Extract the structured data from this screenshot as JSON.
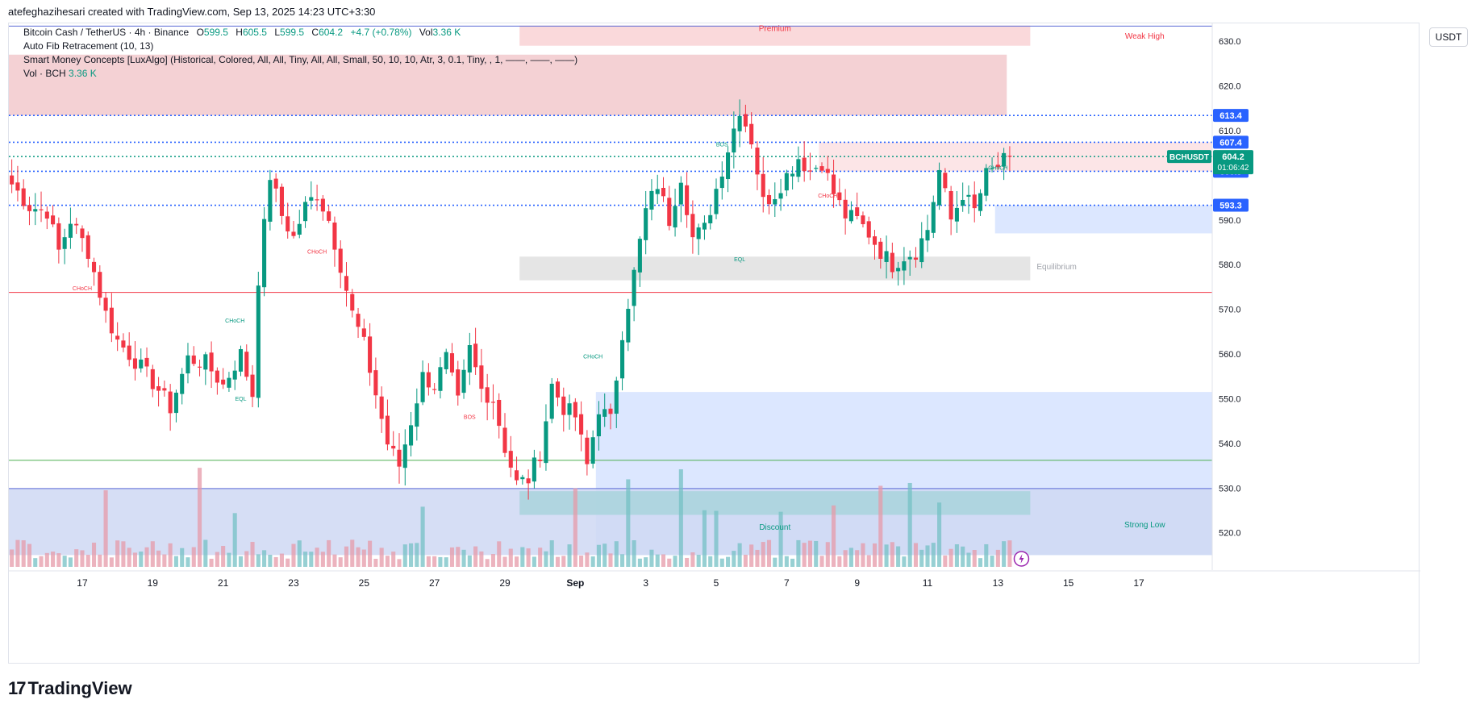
{
  "header": {
    "author_line": "atefeghazihesari created with TradingView.com, Sep 13, 2025 14:23 UTC+3:30"
  },
  "legend": {
    "symbol": "Bitcoin Cash / TetherUS · 4h · Binance",
    "o_label": "O",
    "o_value": "599.5",
    "h_label": "H",
    "h_value": "605.5",
    "l_label": "L",
    "l_value": "599.5",
    "c_label": "C",
    "c_value": "604.2",
    "change": "+4.7 (+0.78%)",
    "vol_label": "Vol",
    "vol_value": "3.36 K",
    "indicator1": "Auto Fib Retracement (10, 13)",
    "indicator2": "Smart Money Concepts [LuxAlgo] (Historical, Colored, All, All, Tiny, All, All, Small, 50, 10, 10, Atr, 3, 0.1, Tiny, , 1, ——, ——, ——)",
    "indicator3_label": "Vol · BCH",
    "indicator3_value": "3.36 K"
  },
  "currency_button": "USDT",
  "footer": {
    "brand": "TradingView",
    "mark": "17"
  },
  "colors": {
    "up": "#089981",
    "down": "#f23645",
    "blue_line": "#2962ff"
  },
  "chart_data": {
    "type": "candlestick",
    "symbol": "BCHUSDT",
    "timeframe": "4h",
    "ylim": [
      512,
      634
    ],
    "y_ticks": [
      520,
      530,
      540,
      550,
      560,
      570,
      580,
      590,
      600,
      610,
      620,
      630
    ],
    "y_tick_labels": [
      "520.0",
      "530.0",
      "540.0",
      "550.0",
      "560.0",
      "570.0",
      "580.0",
      "590.0",
      "",
      "610.0",
      "620.0",
      "630.0"
    ],
    "x_ticks": [
      {
        "i": 12,
        "label": "17"
      },
      {
        "i": 24,
        "label": "19"
      },
      {
        "i": 36,
        "label": "21"
      },
      {
        "i": 48,
        "label": "23"
      },
      {
        "i": 60,
        "label": "25"
      },
      {
        "i": 72,
        "label": "27"
      },
      {
        "i": 84,
        "label": "29"
      },
      {
        "i": 96,
        "label": "Sep"
      },
      {
        "i": 108,
        "label": "3"
      },
      {
        "i": 120,
        "label": "5"
      },
      {
        "i": 132,
        "label": "7"
      },
      {
        "i": 144,
        "label": "9"
      },
      {
        "i": 156,
        "label": "11"
      },
      {
        "i": 168,
        "label": "13"
      },
      {
        "i": 180,
        "label": "15"
      },
      {
        "i": 192,
        "label": "17"
      }
    ],
    "anchors_close": [
      [
        0,
        598
      ],
      [
        3,
        593
      ],
      [
        6,
        592
      ],
      [
        8,
        583
      ],
      [
        10,
        590
      ],
      [
        13,
        583
      ],
      [
        16,
        569
      ],
      [
        18,
        563
      ],
      [
        22,
        557
      ],
      [
        25,
        552
      ],
      [
        27,
        548
      ],
      [
        30,
        559
      ],
      [
        33,
        558
      ],
      [
        36,
        553
      ],
      [
        39,
        560
      ],
      [
        41,
        551
      ],
      [
        42,
        577
      ],
      [
        44,
        600
      ],
      [
        46,
        591
      ],
      [
        48,
        586
      ],
      [
        50,
        593
      ],
      [
        52,
        596
      ],
      [
        54,
        590
      ],
      [
        56,
        580
      ],
      [
        58,
        569
      ],
      [
        60,
        562
      ],
      [
        62,
        551
      ],
      [
        64,
        540
      ],
      [
        66,
        535
      ],
      [
        68,
        545
      ],
      [
        70,
        555
      ],
      [
        72,
        553
      ],
      [
        74,
        559
      ],
      [
        76,
        549
      ],
      [
        78,
        561
      ],
      [
        80,
        552
      ],
      [
        82,
        550
      ],
      [
        84,
        539
      ],
      [
        86,
        531
      ],
      [
        88,
        532
      ],
      [
        90,
        538
      ],
      [
        92,
        553
      ],
      [
        94,
        548
      ],
      [
        96,
        546
      ],
      [
        98,
        535
      ],
      [
        100,
        548
      ],
      [
        102,
        545
      ],
      [
        104,
        565
      ],
      [
        106,
        578
      ],
      [
        108,
        592
      ],
      [
        110,
        598
      ],
      [
        112,
        590
      ],
      [
        114,
        600
      ],
      [
        116,
        586
      ],
      [
        118,
        588
      ],
      [
        120,
        597
      ],
      [
        122,
        606
      ],
      [
        124,
        615
      ],
      [
        126,
        608
      ],
      [
        128,
        594
      ],
      [
        130,
        596
      ],
      [
        132,
        600
      ],
      [
        134,
        604
      ],
      [
        136,
        601
      ],
      [
        138,
        603
      ],
      [
        140,
        596
      ],
      [
        142,
        591
      ],
      [
        144,
        590
      ],
      [
        146,
        587
      ],
      [
        148,
        583
      ],
      [
        150,
        580
      ],
      [
        152,
        582
      ],
      [
        154,
        583
      ],
      [
        156,
        588
      ],
      [
        158,
        601
      ],
      [
        160,
        590
      ],
      [
        162,
        596
      ],
      [
        164,
        592
      ],
      [
        166,
        600
      ],
      [
        168,
        602
      ],
      [
        170,
        604.2
      ]
    ],
    "volume_ylim": [
      0,
      35
    ],
    "volume_max_label": "",
    "last_price": 604.2,
    "countdown": "01:06:42",
    "price_tags": [
      {
        "label": "613.4",
        "price": 613.4,
        "color": "#2962ff"
      },
      {
        "label": "607.4",
        "price": 607.4,
        "color": "#2962ff"
      },
      {
        "label": "600.9",
        "price": 600.9,
        "color": "#2962ff"
      },
      {
        "label": "593.3",
        "price": 593.3,
        "color": "#2962ff"
      }
    ],
    "hlines": [
      {
        "price": 613.4,
        "style": "dotted",
        "color": "#2962ff"
      },
      {
        "price": 607.4,
        "style": "dotted",
        "color": "#2962ff"
      },
      {
        "price": 604.2,
        "style": "dotted",
        "color": "#089981"
      },
      {
        "price": 600.9,
        "style": "dotted",
        "color": "#2962ff"
      },
      {
        "price": 593.3,
        "style": "dotted",
        "color": "#2962ff"
      },
      {
        "price": 573.8,
        "style": "solid",
        "color": "#f23645"
      },
      {
        "price": 536.2,
        "style": "solid",
        "color": "#4caf50"
      },
      {
        "price": 529.9,
        "style": "solid",
        "color": "#5b6bd6"
      },
      {
        "price": 633.4,
        "style": "solid",
        "color": "#5b6bd6"
      }
    ],
    "zones": [
      {
        "name": "premium",
        "x0": 0,
        "x1": 170,
        "y0": 613.4,
        "y1": 627,
        "color": "#f2c9cd"
      },
      {
        "name": "premium-box",
        "x0": 87,
        "x1": 174,
        "y0": 629,
        "y1": 633.5,
        "color": "#f9d2d5"
      },
      {
        "name": "ob-upper",
        "x0": 138,
        "x1": 205,
        "y0": 600.9,
        "y1": 607.4,
        "color": "#fbe1e3"
      },
      {
        "name": "ob-blue-right",
        "x0": 168,
        "x1": 205,
        "y0": 587,
        "y1": 593.3,
        "color": "#d6e3ff"
      },
      {
        "name": "equilibrium",
        "x0": 87,
        "x1": 174,
        "y0": 576.5,
        "y1": 581.8,
        "color": "#e0e0e0"
      },
      {
        "name": "discount-blue",
        "x0": 100,
        "x1": 205,
        "y0": 515,
        "y1": 551.5,
        "color": "#d6e3ff"
      },
      {
        "name": "discount-left",
        "x0": 0,
        "x1": 205,
        "y0": 515,
        "y1": 529.9,
        "color": "#cfd8f3"
      },
      {
        "name": "discount-teal",
        "x0": 87,
        "x1": 174,
        "y0": 524,
        "y1": 529.3,
        "color": "#a9d3dc"
      }
    ],
    "annotations": [
      {
        "text": "Premium",
        "i": 130,
        "price": 632.3,
        "color": "#f23645"
      },
      {
        "text": "Weak High",
        "i": 193,
        "price": 630.6,
        "color": "#f23645"
      },
      {
        "text": "Equilibrium",
        "i": 178,
        "price": 579.0,
        "color": "#a0a3ab"
      },
      {
        "text": "Discount",
        "i": 130,
        "price": 520.7,
        "color": "#089981"
      },
      {
        "text": "Strong Low",
        "i": 193,
        "price": 521.2,
        "color": "#089981"
      },
      {
        "text": "CHoCH",
        "i": 12,
        "price": 574.3,
        "color": "#f23645"
      },
      {
        "text": "CHoCH",
        "i": 38,
        "price": 567.0,
        "color": "#089981"
      },
      {
        "text": "EQL",
        "i": 39,
        "price": 549.5,
        "color": "#089981"
      },
      {
        "text": "CHoCH",
        "i": 52,
        "price": 582.5,
        "color": "#f23645"
      },
      {
        "text": "BOS",
        "i": 78,
        "price": 545.5,
        "color": "#f23645"
      },
      {
        "text": "CHoCH",
        "i": 99,
        "price": 559.0,
        "color": "#089981"
      },
      {
        "text": "BOS",
        "i": 121,
        "price": 606.5,
        "color": "#089981"
      },
      {
        "text": "EQL",
        "i": 124,
        "price": 580.8,
        "color": "#089981"
      },
      {
        "text": "CHoCH",
        "i": 139,
        "price": 595.0,
        "color": "#f23645"
      },
      {
        "text": "CHoCH",
        "i": 168,
        "price": 601.2,
        "color": "#089981"
      }
    ]
  }
}
